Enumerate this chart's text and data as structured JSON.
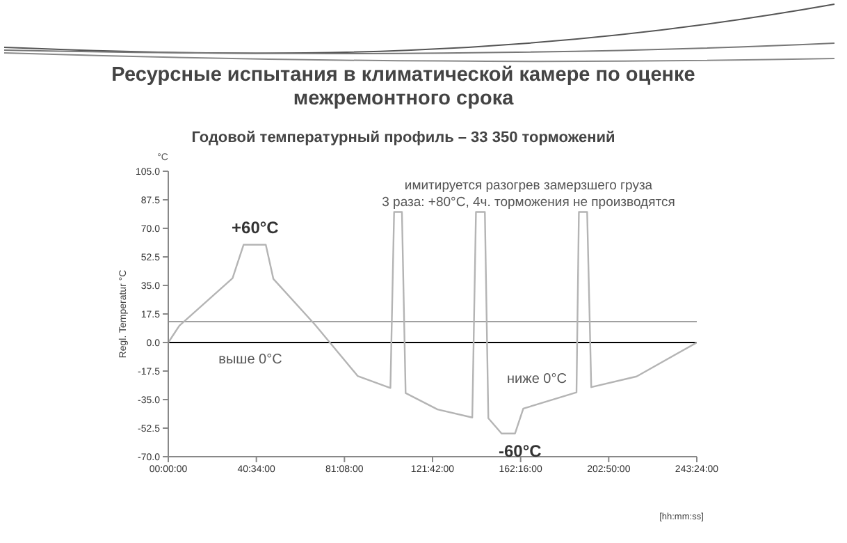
{
  "chart_data": {
    "type": "line",
    "title": "Ресурсные испытания в климатической камере по оценке межремонтного срока",
    "subtitle": "Годовой температурный профиль – 33 350 торможений",
    "xlabel": "[hh:mm:ss]",
    "ylabel": "Regl. Temperatur °C",
    "x": [
      0,
      5.1,
      29.6,
      34.7,
      44.9,
      48.4,
      67.6,
      87.2,
      102.3,
      104.0,
      107.6,
      109.3,
      124.0,
      140.0,
      141.7,
      145.8,
      147.4,
      153.5,
      159.7,
      163.5,
      188.0,
      189.1,
      192.9,
      194.8,
      215.7,
      243.4
    ],
    "series": [
      {
        "color": "#b4b4b4",
        "values": [
          0,
          10.3,
          39.4,
          60,
          60,
          39,
          10.9,
          -20.5,
          -27.9,
          80,
          80,
          -31,
          -41,
          -46,
          80,
          80,
          -46.4,
          -55.8,
          -55.8,
          -40.5,
          -30.6,
          80,
          80,
          -27.4,
          -20.8,
          0
        ]
      }
    ],
    "xlim": [
      0,
      243.4
    ],
    "xticks": [
      {
        "value": 0,
        "label": "00:00:00"
      },
      {
        "value": 40.5667,
        "label": "40:34:00"
      },
      {
        "value": 81.1333,
        "label": "81:08:00"
      },
      {
        "value": 121.7,
        "label": "121:42:00"
      },
      {
        "value": 162.2667,
        "label": "162:16:00"
      },
      {
        "value": 202.8333,
        "label": "202:50:00"
      },
      {
        "value": 243.4,
        "label": "243:24:00"
      }
    ],
    "ylim": [
      -70,
      105
    ],
    "yticks": [
      {
        "value": 105,
        "label": "105.0"
      },
      {
        "value": 87.5,
        "label": "87.5"
      },
      {
        "value": 70,
        "label": "70.0"
      },
      {
        "value": 52.5,
        "label": "52.5"
      },
      {
        "value": 35,
        "label": "35.0"
      },
      {
        "value": 17.5,
        "label": "17.5"
      },
      {
        "value": 0,
        "label": "0.0"
      },
      {
        "value": -17.5,
        "label": "-17.5"
      },
      {
        "value": -35,
        "label": "-35.0"
      },
      {
        "value": -52.5,
        "label": "-52.5"
      },
      {
        "value": -70,
        "label": "-70.0"
      }
    ],
    "ref_lines": [
      {
        "axis": "y",
        "value": 0,
        "color": "#000000"
      },
      {
        "axis": "y",
        "value": 12.8,
        "color": "#a0a0a0"
      }
    ],
    "annotations": [
      "°C",
      "имитируется разогрев замерзшего груза\n3 раза: +80°C, 4ч. торможения не производятся",
      "выше 0°C",
      "ниже 0°C",
      {
        "text": "+60°C",
        "x": 40,
        "y": 60
      },
      {
        "text": "-60°C",
        "x": 162,
        "y": -56
      }
    ],
    "grid": false,
    "legend": false,
    "marker": "none",
    "line_style": "solid"
  }
}
